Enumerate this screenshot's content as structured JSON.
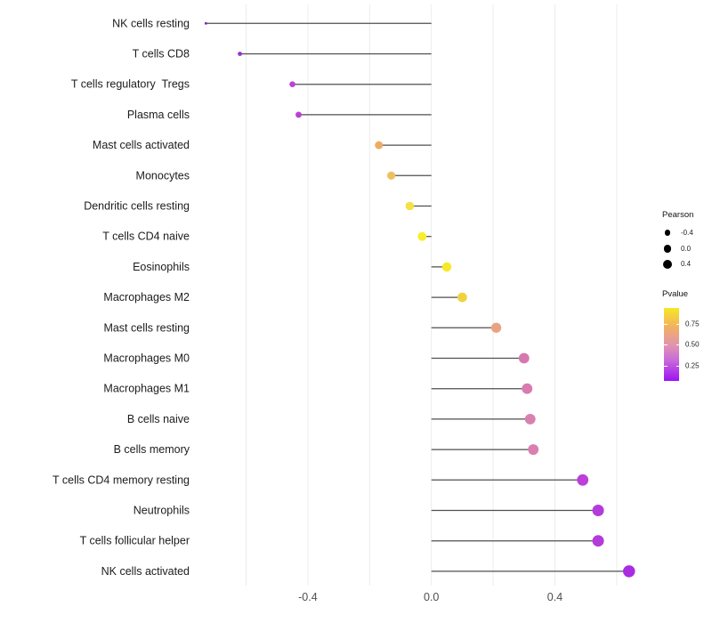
{
  "chart_data": {
    "type": "lollipop",
    "orientation": "horizontal",
    "xlabel": "",
    "ylabel": "",
    "xlim": [
      -0.76,
      0.71
    ],
    "grid": "vertical-only",
    "gridline_values": [
      -0.6,
      -0.4,
      -0.2,
      0.0,
      0.2,
      0.4,
      0.6
    ],
    "x_ticks": [
      {
        "value": -0.4,
        "label": "-0.4"
      },
      {
        "value": 0.0,
        "label": "0.0"
      },
      {
        "value": 0.4,
        "label": "0.4"
      }
    ],
    "size_encoding": "Pearson correlation",
    "color_encoding": "Pvalue",
    "points": [
      {
        "category": "NK cells resting",
        "pearson": -0.73,
        "color": "#7B2DC8"
      },
      {
        "category": "T cells CD8",
        "pearson": -0.62,
        "color": "#9232D2"
      },
      {
        "category": "T cells regulatory  Tregs",
        "pearson": -0.45,
        "color": "#BC42D4"
      },
      {
        "category": "Plasma cells",
        "pearson": -0.43,
        "color": "#BA40D3"
      },
      {
        "category": "Mast cells activated",
        "pearson": -0.17,
        "color": "#EDAC63"
      },
      {
        "category": "Monocytes",
        "pearson": -0.13,
        "color": "#F0C05F"
      },
      {
        "category": "Dendritic cells resting",
        "pearson": -0.07,
        "color": "#F3E146"
      },
      {
        "category": "T cells CD4 naive",
        "pearson": -0.03,
        "color": "#F8EE2C"
      },
      {
        "category": "Eosinophils",
        "pearson": 0.05,
        "color": "#F6E926"
      },
      {
        "category": "Macrophages M2",
        "pearson": 0.1,
        "color": "#EFD23E"
      },
      {
        "category": "Mast cells resting",
        "pearson": 0.21,
        "color": "#E9A382"
      },
      {
        "category": "Macrophages M0",
        "pearson": 0.3,
        "color": "#D678B0"
      },
      {
        "category": "Macrophages M1",
        "pearson": 0.31,
        "color": "#D77BB0"
      },
      {
        "category": "B cells naive",
        "pearson": 0.32,
        "color": "#DA80B1"
      },
      {
        "category": "B cells memory",
        "pearson": 0.33,
        "color": "#DA80B1"
      },
      {
        "category": "T cells CD4 memory resting",
        "pearson": 0.49,
        "color": "#BB3FD8"
      },
      {
        "category": "Neutrophils",
        "pearson": 0.54,
        "color": "#B43BDB"
      },
      {
        "category": "T cells follicular helper",
        "pearson": 0.54,
        "color": "#B43BDB"
      },
      {
        "category": "NK cells activated",
        "pearson": 0.64,
        "color": "#A92BE2"
      }
    ],
    "legend_size": {
      "title": "Pearson",
      "entries": [
        {
          "label": "-0.4",
          "value": -0.4
        },
        {
          "label": "0.0",
          "value": 0.0
        },
        {
          "label": "0.4",
          "value": 0.4
        }
      ]
    },
    "legend_color": {
      "title": "Pvalue",
      "tick_labels": [
        "0.75",
        "0.50",
        "0.25"
      ],
      "gradient_stops": [
        {
          "color": "#F6E726",
          "pos": 0
        },
        {
          "color": "#F2AF63",
          "pos": 27
        },
        {
          "color": "#E093B2",
          "pos": 52
        },
        {
          "color": "#C869DA",
          "pos": 72
        },
        {
          "color": "#9C13F2",
          "pos": 100
        }
      ]
    },
    "colors": {
      "stem": "#4f4f4f",
      "gridline": "#ececec",
      "axis_text": "#4d4d4d",
      "category_text": "#1c1c1c",
      "legend_dot": "#000000",
      "background": "#ffffff"
    }
  }
}
